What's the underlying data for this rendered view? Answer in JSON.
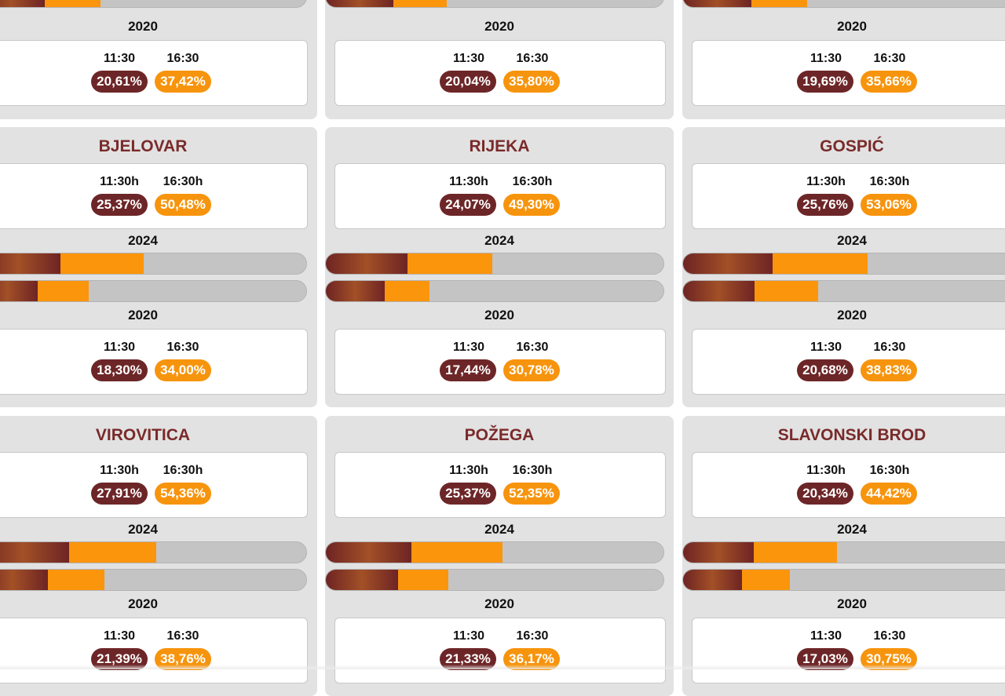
{
  "colors": {
    "title": "#7a2a2a",
    "pill_1130": "#6d2628",
    "pill_1630": "#f7940d",
    "bar_track": "#c4c4c4",
    "card_bg": "#e2e2e2"
  },
  "top_row": [
    {
      "bar_2020": {
        "pct_1130": 20.61,
        "pct_1630": 37.42
      },
      "year_2020": "2020",
      "time_1130": "11:30",
      "time_1630": "16:30",
      "val_1130": "20,61%",
      "val_1630": "37,42%"
    },
    {
      "bar_2020": {
        "pct_1130": 20.04,
        "pct_1630": 35.8
      },
      "year_2020": "2020",
      "time_1130": "11:30",
      "time_1630": "16:30",
      "val_1130": "20,04%",
      "val_1630": "35,80%"
    },
    {
      "bar_2020": {
        "pct_1130": 19.69,
        "pct_1630": 35.66
      },
      "year_2020": "2020",
      "time_1130": "11:30",
      "time_1630": "16:30",
      "val_1130": "19,69%",
      "val_1630": "35,66%"
    }
  ],
  "cities": [
    {
      "name": "BJELOVAR",
      "y2024": {
        "time_1130": "11:30h",
        "time_1630": "16:30h",
        "val_1130": "25,37%",
        "val_1630": "50,48%",
        "pct_1130": 25.37,
        "pct_1630": 50.48
      },
      "year_2024": "2024",
      "year_2020": "2020",
      "y2020": {
        "time_1130": "11:30",
        "time_1630": "16:30",
        "val_1130": "18,30%",
        "val_1630": "34,00%",
        "pct_1130": 18.3,
        "pct_1630": 34.0
      }
    },
    {
      "name": "RIJEKA",
      "y2024": {
        "time_1130": "11:30h",
        "time_1630": "16:30h",
        "val_1130": "24,07%",
        "val_1630": "49,30%",
        "pct_1130": 24.07,
        "pct_1630": 49.3
      },
      "year_2024": "2024",
      "year_2020": "2020",
      "y2020": {
        "time_1130": "11:30",
        "time_1630": "16:30",
        "val_1130": "17,44%",
        "val_1630": "30,78%",
        "pct_1130": 17.44,
        "pct_1630": 30.78
      }
    },
    {
      "name": "GOSPIĆ",
      "y2024": {
        "time_1130": "11:30h",
        "time_1630": "16:30h",
        "val_1130": "25,76%",
        "val_1630": "53,06%",
        "pct_1130": 25.76,
        "pct_1630": 53.06
      },
      "year_2024": "2024",
      "year_2020": "2020",
      "y2020": {
        "time_1130": "11:30",
        "time_1630": "16:30",
        "val_1130": "20,68%",
        "val_1630": "38,83%",
        "pct_1130": 20.68,
        "pct_1630": 38.83
      }
    },
    {
      "name": "VIROVITICA",
      "y2024": {
        "time_1130": "11:30h",
        "time_1630": "16:30h",
        "val_1130": "27,91%",
        "val_1630": "54,36%",
        "pct_1130": 27.91,
        "pct_1630": 54.36
      },
      "year_2024": "2024",
      "year_2020": "2020",
      "y2020": {
        "time_1130": "11:30",
        "time_1630": "16:30",
        "val_1130": "21,39%",
        "val_1630": "38,76%",
        "pct_1130": 21.39,
        "pct_1630": 38.76
      }
    },
    {
      "name": "POŽEGA",
      "y2024": {
        "time_1130": "11:30h",
        "time_1630": "16:30h",
        "val_1130": "25,37%",
        "val_1630": "52,35%",
        "pct_1130": 25.37,
        "pct_1630": 52.35
      },
      "year_2024": "2024",
      "year_2020": "2020",
      "y2020": {
        "time_1130": "11:30",
        "time_1630": "16:30",
        "val_1130": "21,33%",
        "val_1630": "36,17%",
        "pct_1130": 21.33,
        "pct_1630": 36.17
      }
    },
    {
      "name": "SLAVONSKI BROD",
      "y2024": {
        "time_1130": "11:30h",
        "time_1630": "16:30h",
        "val_1130": "20,34%",
        "val_1630": "44,42%",
        "pct_1130": 20.34,
        "pct_1630": 44.42
      },
      "year_2024": "2024",
      "year_2020": "2020",
      "y2020": {
        "time_1130": "11:30",
        "time_1630": "16:30",
        "val_1130": "17,03%",
        "val_1630": "30,75%",
        "pct_1130": 17.03,
        "pct_1630": 30.75
      }
    }
  ]
}
